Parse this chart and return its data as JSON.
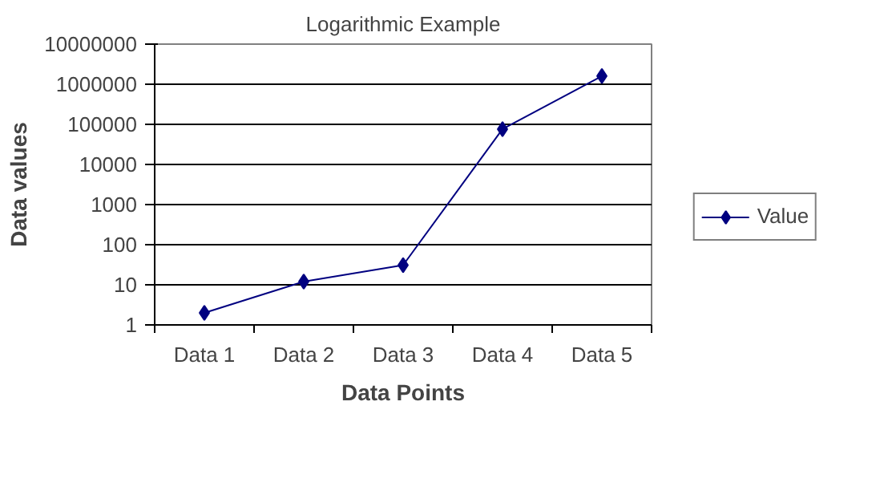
{
  "chart_data": {
    "type": "line",
    "title": "Logarithmic Example",
    "xlabel": "Data Points",
    "ylabel": "Data values",
    "categories": [
      "Data 1",
      "Data 2",
      "Data 3",
      "Data 4",
      "Data 5"
    ],
    "series": [
      {
        "name": "Value",
        "color": "#000080",
        "values": [
          2,
          12,
          31,
          76000,
          1600000
        ]
      }
    ],
    "log": true,
    "ylim": [
      1,
      10000000
    ],
    "yticks": [
      1,
      10,
      100,
      1000,
      10000,
      100000,
      1000000,
      10000000
    ],
    "grid": "y",
    "legend": "right",
    "marker": "diamond",
    "line_style": "solid"
  }
}
